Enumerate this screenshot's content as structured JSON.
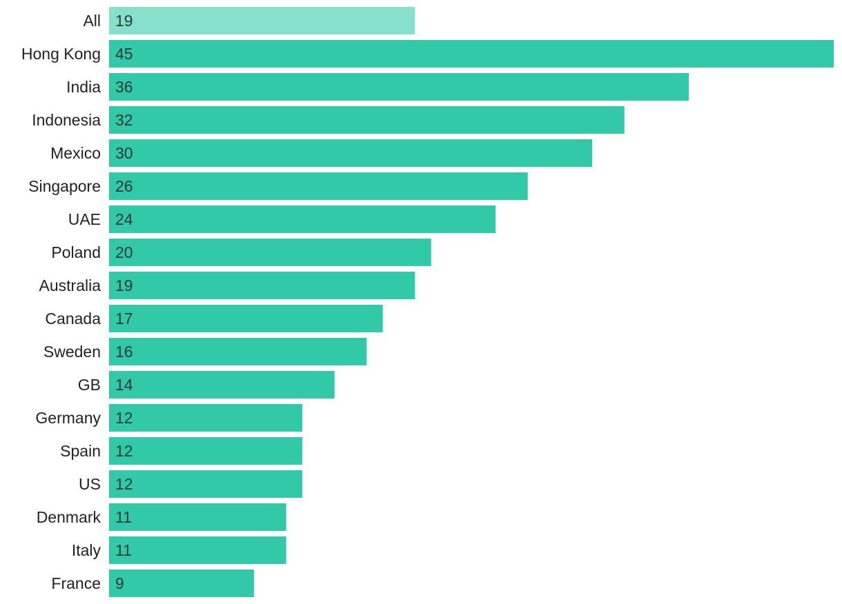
{
  "chart_data": {
    "type": "bar",
    "orientation": "horizontal",
    "categories": [
      "All",
      "Hong Kong",
      "India",
      "Indonesia",
      "Mexico",
      "Singapore",
      "UAE",
      "Poland",
      "Australia",
      "Canada",
      "Sweden",
      "GB",
      "Germany",
      "Spain",
      "US",
      "Denmark",
      "Italy",
      "France"
    ],
    "values": [
      19,
      45,
      36,
      32,
      30,
      26,
      24,
      20,
      19,
      17,
      16,
      14,
      12,
      12,
      12,
      11,
      11,
      9
    ],
    "value_labels": [
      "19",
      "45",
      "36",
      "32",
      "30",
      "26",
      "24",
      "20",
      "19",
      "17",
      "16",
      "14",
      "12",
      "12",
      "12",
      "11",
      "11",
      "9"
    ],
    "highlight_category": "All",
    "xlim": [
      0,
      45
    ],
    "grid": false,
    "legend": "none",
    "colors": {
      "bar": "#31c9a7",
      "highlight_bar": "#86e0ca",
      "category_text": "#222222",
      "value_text": "#2b3a36"
    }
  }
}
